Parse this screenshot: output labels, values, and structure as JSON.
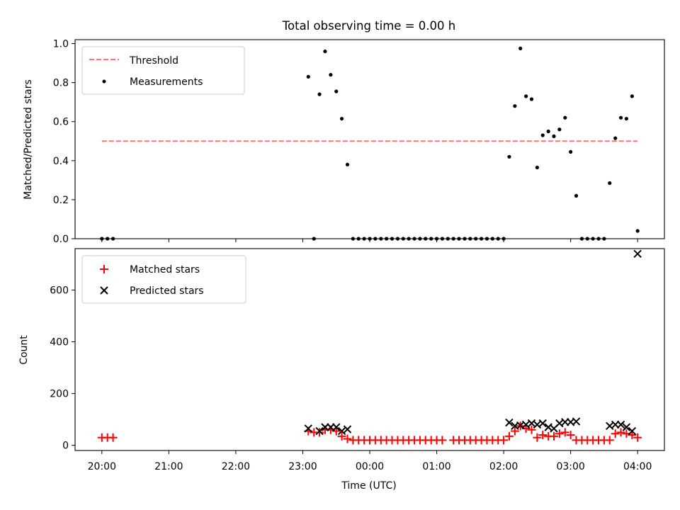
{
  "chart_data": [
    {
      "type": "scatter",
      "title": "Total observing time = 0.00 h",
      "xlabel": "",
      "ylabel": "Matched/Predicted stars",
      "ylim": [
        0,
        1.02
      ],
      "yticks": [
        "0.0",
        "0.2",
        "0.4",
        "0.6",
        "0.8",
        "1.0"
      ],
      "legend_position": "upper-left",
      "threshold": {
        "name": "Threshold",
        "value": 0.5,
        "x_range": [
          20.0,
          28.0
        ],
        "color": "#ff7373"
      },
      "series": [
        {
          "name": "Measurements",
          "color": "#000000",
          "points": [
            [
              20.0,
              0
            ],
            [
              20.083,
              0
            ],
            [
              20.167,
              0
            ],
            [
              23.083,
              0.83
            ],
            [
              23.167,
              0
            ],
            [
              23.25,
              0.74
            ],
            [
              23.333,
              0.96
            ],
            [
              23.417,
              0.84
            ],
            [
              23.5,
              0.755
            ],
            [
              23.583,
              0.615
            ],
            [
              23.667,
              0.38
            ],
            [
              23.75,
              0
            ],
            [
              23.833,
              0
            ],
            [
              23.917,
              0
            ],
            [
              24.0,
              0
            ],
            [
              24.083,
              0
            ],
            [
              24.167,
              0
            ],
            [
              24.25,
              0
            ],
            [
              24.333,
              0
            ],
            [
              24.417,
              0
            ],
            [
              24.5,
              0
            ],
            [
              24.583,
              0
            ],
            [
              24.667,
              0
            ],
            [
              24.75,
              0
            ],
            [
              24.833,
              0
            ],
            [
              24.917,
              0
            ],
            [
              25.0,
              0
            ],
            [
              25.083,
              0
            ],
            [
              25.167,
              0
            ],
            [
              25.25,
              0
            ],
            [
              25.333,
              0
            ],
            [
              25.417,
              0
            ],
            [
              25.5,
              0
            ],
            [
              25.583,
              0
            ],
            [
              25.667,
              0
            ],
            [
              25.75,
              0
            ],
            [
              25.833,
              0
            ],
            [
              25.917,
              0
            ],
            [
              26.0,
              0
            ],
            [
              26.083,
              0.42
            ],
            [
              26.167,
              0.68
            ],
            [
              26.25,
              0.975
            ],
            [
              26.333,
              0.73
            ],
            [
              26.417,
              0.715
            ],
            [
              26.5,
              0.365
            ],
            [
              26.583,
              0.53
            ],
            [
              26.667,
              0.55
            ],
            [
              26.75,
              0.525
            ],
            [
              26.833,
              0.56
            ],
            [
              26.917,
              0.62
            ],
            [
              27.0,
              0.445
            ],
            [
              27.083,
              0.22
            ],
            [
              27.167,
              0
            ],
            [
              27.25,
              0
            ],
            [
              27.333,
              0
            ],
            [
              27.417,
              0
            ],
            [
              27.5,
              0
            ],
            [
              27.583,
              0.285
            ],
            [
              27.667,
              0.515
            ],
            [
              27.75,
              0.62
            ],
            [
              27.833,
              0.615
            ],
            [
              27.917,
              0.73
            ],
            [
              28.0,
              0.04
            ]
          ]
        }
      ]
    },
    {
      "type": "scatter",
      "title": "",
      "xlabel": "Time (UTC)",
      "ylabel": "Count",
      "ylim": [
        -20,
        760
      ],
      "yticks": [
        "0",
        "200",
        "400",
        "600"
      ],
      "xticks": [
        "20:00",
        "21:00",
        "22:00",
        "23:00",
        "00:00",
        "01:00",
        "02:00",
        "03:00",
        "04:00"
      ],
      "xlim": [
        19.6,
        28.4
      ],
      "legend_position": "upper-left",
      "series": [
        {
          "name": "Matched stars",
          "marker": "plus",
          "color": "#ff0000",
          "points": [
            [
              20.0,
              30
            ],
            [
              20.083,
              30
            ],
            [
              20.167,
              30
            ],
            [
              23.083,
              55
            ],
            [
              23.167,
              50
            ],
            [
              23.25,
              50
            ],
            [
              23.333,
              60
            ],
            [
              23.417,
              60
            ],
            [
              23.5,
              55
            ],
            [
              23.583,
              35
            ],
            [
              23.667,
              25
            ],
            [
              23.75,
              20
            ],
            [
              23.833,
              20
            ],
            [
              23.917,
              20
            ],
            [
              24.0,
              20
            ],
            [
              24.083,
              20
            ],
            [
              24.167,
              20
            ],
            [
              24.25,
              20
            ],
            [
              24.333,
              20
            ],
            [
              24.417,
              20
            ],
            [
              24.5,
              20
            ],
            [
              24.583,
              20
            ],
            [
              24.667,
              20
            ],
            [
              24.75,
              20
            ],
            [
              24.833,
              20
            ],
            [
              24.917,
              20
            ],
            [
              25.0,
              20
            ],
            [
              25.083,
              20
            ],
            [
              25.25,
              20
            ],
            [
              25.333,
              20
            ],
            [
              25.417,
              20
            ],
            [
              25.5,
              20
            ],
            [
              25.583,
              20
            ],
            [
              25.667,
              20
            ],
            [
              25.75,
              20
            ],
            [
              25.833,
              20
            ],
            [
              25.917,
              20
            ],
            [
              26.0,
              20
            ],
            [
              26.083,
              35
            ],
            [
              26.167,
              55
            ],
            [
              26.25,
              75
            ],
            [
              26.333,
              65
            ],
            [
              26.417,
              60
            ],
            [
              26.5,
              30
            ],
            [
              26.583,
              40
            ],
            [
              26.667,
              35
            ],
            [
              26.75,
              35
            ],
            [
              26.833,
              45
            ],
            [
              26.917,
              50
            ],
            [
              27.0,
              40
            ],
            [
              27.083,
              20
            ],
            [
              27.167,
              20
            ],
            [
              27.25,
              20
            ],
            [
              27.333,
              20
            ],
            [
              27.417,
              20
            ],
            [
              27.5,
              20
            ],
            [
              27.583,
              20
            ],
            [
              27.667,
              45
            ],
            [
              27.75,
              50
            ],
            [
              27.833,
              45
            ],
            [
              27.917,
              40
            ],
            [
              28.0,
              30
            ]
          ]
        },
        {
          "name": "Predicted stars",
          "marker": "x",
          "color": "#000000",
          "points": [
            [
              23.083,
              65
            ],
            [
              23.25,
              55
            ],
            [
              23.333,
              70
            ],
            [
              23.417,
              70
            ],
            [
              23.5,
              70
            ],
            [
              23.583,
              55
            ],
            [
              23.667,
              62
            ],
            [
              26.083,
              88
            ],
            [
              26.167,
              75
            ],
            [
              26.25,
              77
            ],
            [
              26.333,
              80
            ],
            [
              26.417,
              85
            ],
            [
              26.5,
              80
            ],
            [
              26.583,
              85
            ],
            [
              26.667,
              70
            ],
            [
              26.75,
              65
            ],
            [
              26.833,
              85
            ],
            [
              26.917,
              90
            ],
            [
              27.0,
              90
            ],
            [
              27.083,
              92
            ],
            [
              27.583,
              75
            ],
            [
              27.667,
              80
            ],
            [
              27.75,
              80
            ],
            [
              27.833,
              70
            ],
            [
              27.917,
              55
            ],
            [
              28.0,
              740
            ]
          ]
        }
      ]
    }
  ]
}
